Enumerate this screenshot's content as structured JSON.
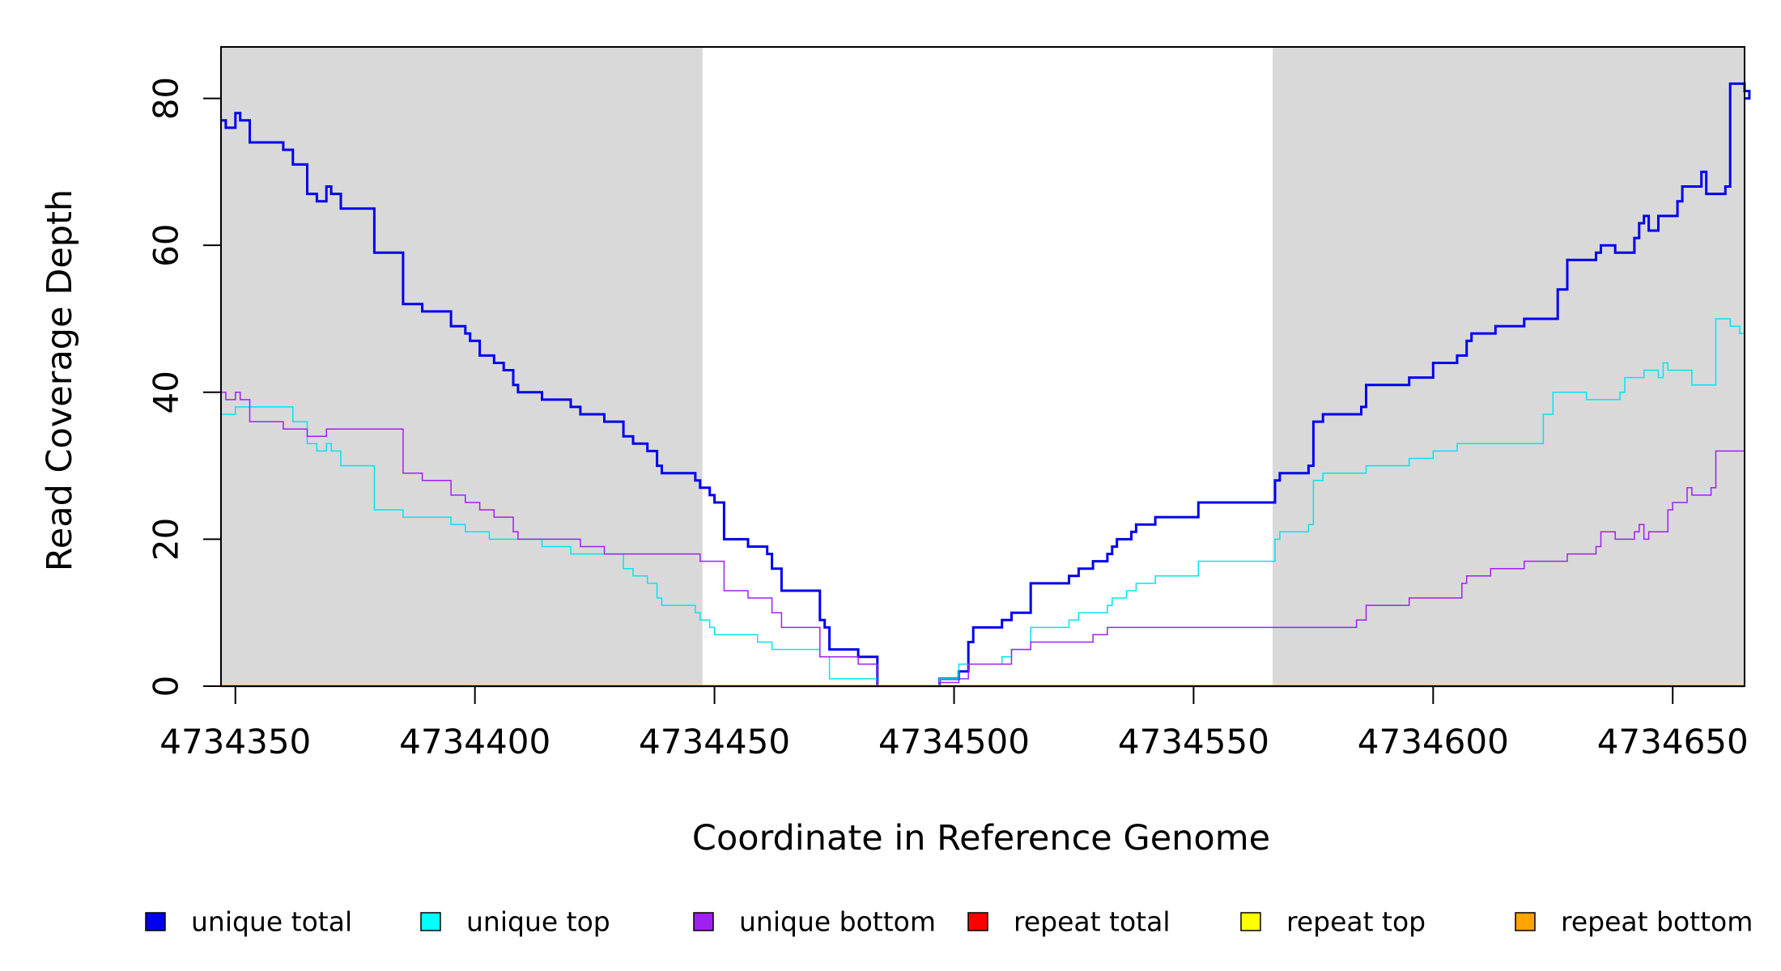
{
  "chart_data": {
    "type": "line",
    "step": true,
    "title": "",
    "xlabel": "Coordinate in Reference Genome",
    "ylabel": "Read Coverage Depth",
    "xlim": [
      4734347,
      4734665
    ],
    "ylim": [
      0,
      87
    ],
    "x_ticks": [
      4734350,
      4734400,
      4734450,
      4734500,
      4734550,
      4734600,
      4734650
    ],
    "x_tick_labels": [
      "4734350",
      "4734400",
      "4734450",
      "4734500",
      "4734550",
      "4734600",
      "4734650"
    ],
    "y_ticks": [
      0,
      20,
      40,
      60,
      80
    ],
    "y_tick_labels": [
      "0",
      "20",
      "40",
      "60",
      "80"
    ],
    "shaded_regions": [
      {
        "from": 4734347,
        "to": 4734447.5,
        "color": "#d9d9d9"
      },
      {
        "from": 4734566.5,
        "to": 4734665,
        "color": "#d9d9d9"
      }
    ],
    "series": [
      {
        "name": "unique total",
        "color": "#0000ee",
        "width": 3,
        "points": [
          [
            4734347,
            77
          ],
          [
            4734348,
            76
          ],
          [
            4734350,
            78
          ],
          [
            4734351,
            77
          ],
          [
            4734353,
            74
          ],
          [
            4734360,
            73
          ],
          [
            4734362,
            71
          ],
          [
            4734365,
            67
          ],
          [
            4734367,
            66
          ],
          [
            4734369,
            68
          ],
          [
            4734370,
            67
          ],
          [
            4734372,
            65
          ],
          [
            4734379,
            59
          ],
          [
            4734385,
            52
          ],
          [
            4734389,
            51
          ],
          [
            4734395,
            49
          ],
          [
            4734398,
            48
          ],
          [
            4734399,
            47
          ],
          [
            4734401,
            45
          ],
          [
            4734404,
            44
          ],
          [
            4734406,
            43
          ],
          [
            4734408,
            41
          ],
          [
            4734409,
            40
          ],
          [
            4734414,
            39
          ],
          [
            4734420,
            38
          ],
          [
            4734422,
            37
          ],
          [
            4734427,
            36
          ],
          [
            4734431,
            34
          ],
          [
            4734433,
            33
          ],
          [
            4734436,
            32
          ],
          [
            4734438,
            30
          ],
          [
            4734439,
            29
          ],
          [
            4734446,
            28
          ],
          [
            4734447,
            27
          ],
          [
            4734449,
            26
          ],
          [
            4734450,
            25
          ],
          [
            4734452,
            20
          ],
          [
            4734457,
            19
          ],
          [
            4734461,
            18
          ],
          [
            4734462,
            16
          ],
          [
            4734464,
            13
          ],
          [
            4734472,
            9
          ],
          [
            4734473,
            8
          ],
          [
            4734474,
            5
          ],
          [
            4734480,
            4
          ],
          [
            4734484,
            0
          ],
          [
            4734497,
            1
          ],
          [
            4734501,
            2
          ],
          [
            4734503,
            6
          ],
          [
            4734504,
            8
          ],
          [
            4734510,
            9
          ],
          [
            4734512,
            10
          ],
          [
            4734516,
            14
          ],
          [
            4734524,
            15
          ],
          [
            4734526,
            16
          ],
          [
            4734529,
            17
          ],
          [
            4734532,
            18
          ],
          [
            4734533,
            19
          ],
          [
            4734534,
            20
          ],
          [
            4734537,
            21
          ],
          [
            4734538,
            22
          ],
          [
            4734542,
            23
          ],
          [
            4734551,
            25
          ],
          [
            4734567,
            28
          ],
          [
            4734568,
            29
          ],
          [
            4734574,
            30
          ],
          [
            4734575,
            36
          ],
          [
            4734577,
            37
          ],
          [
            4734585,
            38
          ],
          [
            4734586,
            41
          ],
          [
            4734595,
            42
          ],
          [
            4734600,
            44
          ],
          [
            4734605,
            45
          ],
          [
            4734607,
            47
          ],
          [
            4734608,
            48
          ],
          [
            4734613,
            49
          ],
          [
            4734619,
            50
          ],
          [
            4734626,
            54
          ],
          [
            4734628,
            58
          ],
          [
            4734634,
            59
          ],
          [
            4734635,
            60
          ],
          [
            4734638,
            59
          ],
          [
            4734642,
            61
          ],
          [
            4734643,
            63
          ],
          [
            4734644,
            64
          ],
          [
            4734645,
            62
          ],
          [
            4734647,
            64
          ],
          [
            4734651,
            66
          ],
          [
            4734652,
            68
          ],
          [
            4734656,
            70
          ],
          [
            4734657,
            67
          ],
          [
            4734661,
            68
          ],
          [
            4734662,
            82
          ],
          [
            4734665,
            81
          ],
          [
            4734666,
            80
          ]
        ]
      },
      {
        "name": "unique top",
        "color": "#00e5ee",
        "width": 1.5,
        "points": [
          [
            4734347,
            37
          ],
          [
            4734350,
            38
          ],
          [
            4734362,
            36
          ],
          [
            4734365,
            33
          ],
          [
            4734367,
            32
          ],
          [
            4734369,
            33
          ],
          [
            4734370,
            32
          ],
          [
            4734372,
            30
          ],
          [
            4734379,
            24
          ],
          [
            4734385,
            23
          ],
          [
            4734395,
            22
          ],
          [
            4734398,
            21
          ],
          [
            4734403,
            20
          ],
          [
            4734414,
            19
          ],
          [
            4734420,
            18
          ],
          [
            4734431,
            16
          ],
          [
            4734433,
            15
          ],
          [
            4734436,
            14
          ],
          [
            4734438,
            12
          ],
          [
            4734439,
            11
          ],
          [
            4734446,
            10
          ],
          [
            4734447,
            9
          ],
          [
            4734449,
            8
          ],
          [
            4734450,
            7
          ],
          [
            4734459,
            6
          ],
          [
            4734462,
            5
          ],
          [
            4734472,
            4
          ],
          [
            4734474,
            1
          ],
          [
            4734484,
            0
          ],
          [
            4734497,
            1
          ],
          [
            4734501,
            3
          ],
          [
            4734510,
            4
          ],
          [
            4734512,
            5
          ],
          [
            4734516,
            8
          ],
          [
            4734524,
            9
          ],
          [
            4734526,
            10
          ],
          [
            4734532,
            11
          ],
          [
            4734533,
            12
          ],
          [
            4734536,
            13
          ],
          [
            4734538,
            14
          ],
          [
            4734542,
            15
          ],
          [
            4734551,
            17
          ],
          [
            4734567,
            20
          ],
          [
            4734568,
            21
          ],
          [
            4734574,
            22
          ],
          [
            4734575,
            28
          ],
          [
            4734577,
            29
          ],
          [
            4734586,
            30
          ],
          [
            4734595,
            31
          ],
          [
            4734600,
            32
          ],
          [
            4734605,
            33
          ],
          [
            4734623,
            37
          ],
          [
            4734625,
            40
          ],
          [
            4734632,
            39
          ],
          [
            4734639,
            40
          ],
          [
            4734640,
            42
          ],
          [
            4734644,
            43
          ],
          [
            4734647,
            42
          ],
          [
            4734648,
            44
          ],
          [
            4734649,
            43
          ],
          [
            4734654,
            41
          ],
          [
            4734659,
            50
          ],
          [
            4734662,
            49
          ],
          [
            4734664,
            48
          ]
        ]
      },
      {
        "name": "unique bottom",
        "color": "#a020f0",
        "width": 1.5,
        "points": [
          [
            4734347,
            40
          ],
          [
            4734348,
            39
          ],
          [
            4734350,
            40
          ],
          [
            4734351,
            39
          ],
          [
            4734353,
            36
          ],
          [
            4734360,
            35
          ],
          [
            4734365,
            34
          ],
          [
            4734369,
            35
          ],
          [
            4734385,
            29
          ],
          [
            4734389,
            28
          ],
          [
            4734395,
            26
          ],
          [
            4734398,
            25
          ],
          [
            4734401,
            24
          ],
          [
            4734404,
            23
          ],
          [
            4734408,
            21
          ],
          [
            4734409,
            20
          ],
          [
            4734422,
            19
          ],
          [
            4734427,
            18
          ],
          [
            4734447,
            17
          ],
          [
            4734452,
            13
          ],
          [
            4734457,
            12
          ],
          [
            4734462,
            10
          ],
          [
            4734464,
            8
          ],
          [
            4734472,
            4
          ],
          [
            4734480,
            3
          ],
          [
            4734484,
            0
          ],
          [
            4734497,
            0.5
          ],
          [
            4734501,
            1
          ],
          [
            4734503,
            3
          ],
          [
            4734512,
            5
          ],
          [
            4734516,
            6
          ],
          [
            4734529,
            7
          ],
          [
            4734532,
            8
          ],
          [
            4734584,
            9
          ],
          [
            4734586,
            11
          ],
          [
            4734595,
            12
          ],
          [
            4734606,
            14
          ],
          [
            4734607,
            15
          ],
          [
            4734612,
            16
          ],
          [
            4734619,
            17
          ],
          [
            4734628,
            18
          ],
          [
            4734634,
            19
          ],
          [
            4734635,
            21
          ],
          [
            4734638,
            20
          ],
          [
            4734642,
            21
          ],
          [
            4734643,
            22
          ],
          [
            4734644,
            20
          ],
          [
            4734645,
            21
          ],
          [
            4734649,
            24
          ],
          [
            4734650,
            25
          ],
          [
            4734653,
            27
          ],
          [
            4734654,
            26
          ],
          [
            4734658,
            27
          ],
          [
            4734659,
            32
          ],
          [
            4734665,
            32
          ]
        ]
      },
      {
        "name": "repeat total",
        "color": "#ff0000",
        "width": 2,
        "points": [
          [
            4734347,
            0
          ],
          [
            4734665,
            0
          ]
        ]
      },
      {
        "name": "repeat top",
        "color": "#ffff00",
        "width": 2,
        "points": [
          [
            4734347,
            0
          ],
          [
            4734665,
            0
          ]
        ]
      },
      {
        "name": "repeat bottom",
        "color": "#ffa500",
        "width": 3,
        "points": [
          [
            4734347,
            0
          ],
          [
            4734665,
            0
          ]
        ]
      }
    ],
    "legend": [
      {
        "label": "unique total",
        "color": "#0000ee"
      },
      {
        "label": "unique top",
        "color": "#00ffff"
      },
      {
        "label": "unique bottom",
        "color": "#a020f0"
      },
      {
        "label": "repeat total",
        "color": "#ff0000"
      },
      {
        "label": "repeat top",
        "color": "#ffff00"
      },
      {
        "label": "repeat bottom",
        "color": "#ffa500"
      }
    ],
    "legend_position": "bottom"
  }
}
